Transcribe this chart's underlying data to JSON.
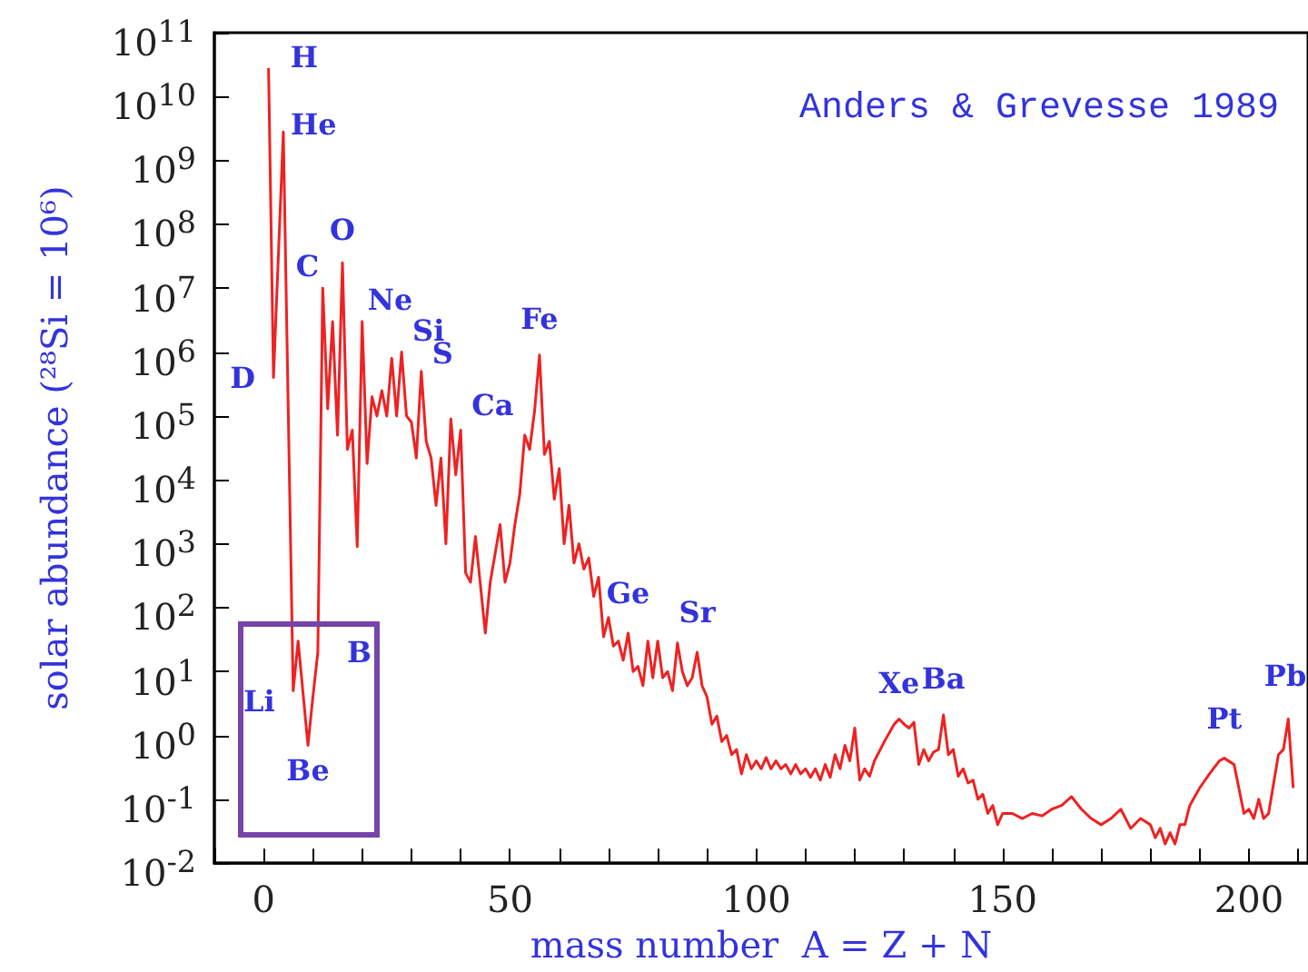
{
  "chart_data": {
    "type": "line",
    "xlabel": "mass number  A = Z + N",
    "ylabel": "solar abundance (²⁸Si = 10⁶)",
    "log": "y",
    "grid": false,
    "marker": "none",
    "line_style": "solid",
    "xlim": [
      -10,
      212
    ],
    "xticks": [
      {
        "value": -10,
        "label": null
      },
      0,
      {
        "value": 10,
        "label": null
      },
      {
        "value": 20,
        "label": null
      },
      {
        "value": 30,
        "label": null
      },
      {
        "value": 40,
        "label": null
      },
      50,
      {
        "value": 60,
        "label": null
      },
      {
        "value": 70,
        "label": null
      },
      {
        "value": 80,
        "label": null
      },
      {
        "value": 90,
        "label": null
      },
      100,
      {
        "value": 110,
        "label": null
      },
      {
        "value": 120,
        "label": null
      },
      {
        "value": 130,
        "label": null
      },
      {
        "value": 140,
        "label": null
      },
      150,
      {
        "value": 160,
        "label": null
      },
      {
        "value": 170,
        "label": null
      },
      {
        "value": 180,
        "label": null
      },
      {
        "value": 190,
        "label": null
      },
      200,
      {
        "value": 210,
        "label": null
      }
    ],
    "ylim": [
      0.01,
      100000000000
    ],
    "yticks": [
      {
        "value": 0.01,
        "label": "10$^{-2}$"
      },
      {
        "value": 0.1,
        "label": "10$^{-1}$"
      },
      {
        "value": 1,
        "label": "10$^{0}$"
      },
      {
        "value": 10,
        "label": "10$^{1}$"
      },
      {
        "value": 100,
        "label": "10$^{2}$"
      },
      {
        "value": 1000,
        "label": "10$^{3}$"
      },
      {
        "value": 10000,
        "label": "10$^{4}$"
      },
      {
        "value": 100000,
        "label": "10$^{5}$"
      },
      {
        "value": 1000000,
        "label": "10$^{6}$"
      },
      {
        "value": 10000000,
        "label": "10$^{7}$"
      },
      {
        "value": 100000000,
        "label": "10$^{8}$"
      },
      {
        "value": 1000000000,
        "label": "10$^{9}$"
      },
      {
        "value": 10000000000,
        "label": "10$^{10}$"
      },
      {
        "value": 100000000000,
        "label": "10$^{11}$"
      }
    ],
    "series": [
      {
        "color": "#ee2222",
        "x": [
          1,
          2,
          4,
          6,
          7,
          9,
          10,
          11,
          12,
          13,
          14,
          15,
          16,
          17,
          18,
          19,
          20,
          21,
          22,
          23,
          24,
          25,
          26,
          27,
          28,
          29,
          30,
          31,
          32,
          33,
          34,
          35,
          36,
          37,
          38,
          39,
          40,
          41,
          42,
          43,
          45,
          46,
          48,
          49,
          50,
          51,
          52,
          53,
          54,
          55,
          56,
          57,
          58,
          59,
          60,
          61,
          62,
          63,
          64,
          65,
          66,
          67,
          68,
          69,
          70,
          71,
          72,
          73,
          74,
          75,
          76,
          77,
          78,
          79,
          80,
          81,
          82,
          83,
          84,
          85,
          86,
          87,
          88,
          89,
          90,
          91,
          92,
          93,
          94,
          95,
          96,
          97,
          98,
          99,
          100,
          101,
          102,
          103,
          104,
          105,
          106,
          107,
          108,
          109,
          110,
          111,
          112,
          113,
          114,
          115,
          116,
          117,
          118,
          119,
          120,
          121,
          122,
          123,
          124,
          126,
          128,
          129,
          130,
          131,
          132,
          133,
          134,
          135,
          136,
          137,
          138,
          139,
          140,
          141,
          142,
          143,
          144,
          145,
          146,
          147,
          148,
          149,
          150,
          152,
          154,
          156,
          158,
          160,
          162,
          164,
          166,
          168,
          170,
          172,
          174,
          176,
          178,
          180,
          181,
          182,
          183,
          184,
          185,
          186,
          187,
          188,
          190,
          192,
          194,
          195,
          197,
          199,
          200,
          201,
          202,
          203,
          204,
          206,
          207,
          208,
          209
        ],
        "values": [
          28000000000,
          400000,
          2800000000,
          5,
          30,
          0.7,
          4,
          20,
          10000000,
          130000,
          3000000,
          50000,
          25000000,
          30000,
          60000,
          900,
          3000000,
          18000,
          200000,
          100000,
          250000,
          100000,
          800000,
          100000,
          1000000,
          100000,
          80000,
          22000,
          500000,
          40000,
          22000,
          4000,
          22000,
          1000,
          90000,
          12000,
          60000,
          350,
          250,
          1300,
          40,
          250,
          2000,
          250,
          500,
          2000,
          6000,
          50000,
          30000,
          120000,
          900000,
          25000,
          40000,
          5000,
          15000,
          1000,
          4000,
          500,
          1000,
          400,
          600,
          150,
          300,
          35,
          70,
          25,
          30,
          15,
          40,
          10,
          12,
          6,
          30,
          8,
          30,
          8,
          10,
          5,
          28,
          10,
          6,
          8,
          20,
          6,
          4,
          1.5,
          2,
          0.8,
          1,
          0.5,
          0.6,
          0.25,
          0.5,
          0.3,
          0.4,
          0.3,
          0.45,
          0.3,
          0.4,
          0.3,
          0.35,
          0.25,
          0.35,
          0.25,
          0.3,
          0.22,
          0.3,
          0.2,
          0.35,
          0.22,
          0.5,
          0.3,
          0.7,
          0.4,
          1.3,
          0.2,
          0.3,
          0.23,
          0.4,
          0.8,
          1.5,
          1.8,
          1.5,
          1.3,
          1.6,
          0.35,
          0.6,
          0.4,
          0.55,
          0.6,
          2.1,
          0.5,
          0.6,
          0.23,
          0.3,
          0.18,
          0.2,
          0.1,
          0.12,
          0.06,
          0.08,
          0.04,
          0.06,
          0.06,
          0.05,
          0.06,
          0.055,
          0.07,
          0.08,
          0.11,
          0.07,
          0.05,
          0.04,
          0.05,
          0.07,
          0.035,
          0.05,
          0.04,
          0.025,
          0.035,
          0.02,
          0.03,
          0.02,
          0.04,
          0.04,
          0.08,
          0.15,
          0.25,
          0.4,
          0.44,
          0.35,
          0.06,
          0.07,
          0.05,
          0.1,
          0.05,
          0.06,
          0.5,
          0.6,
          1.8,
          0.15
        ]
      }
    ],
    "annotations": [
      "Anders & Grevesse 1989",
      {
        "text": "H",
        "x": 1,
        "y": 28000000000
      },
      {
        "text": "He",
        "x": 4,
        "y": 2800000000
      },
      {
        "text": "D",
        "x": 2,
        "y": 400000
      },
      {
        "text": "Li",
        "x": 6,
        "y": 5
      },
      {
        "text": "Be",
        "x": 9,
        "y": 0.7
      },
      {
        "text": "B",
        "x": 11,
        "y": 20
      },
      {
        "text": "C",
        "x": 12,
        "y": 10000000
      },
      {
        "text": "O",
        "x": 16,
        "y": 25000000
      },
      {
        "text": "Ne",
        "x": 20,
        "y": 3000000
      },
      {
        "text": "Si",
        "x": 28,
        "y": 1000000
      },
      {
        "text": "S",
        "x": 32,
        "y": 500000
      },
      {
        "text": "Ca",
        "x": 40,
        "y": 60000
      },
      {
        "text": "Fe",
        "x": 56,
        "y": 900000
      },
      {
        "text": "Ge",
        "x": 74,
        "y": 40
      },
      {
        "text": "Sr",
        "x": 88,
        "y": 20
      },
      {
        "text": "Xe",
        "x": 129,
        "y": 1.8
      },
      {
        "text": "Ba",
        "x": 138,
        "y": 2.1
      },
      {
        "text": "Pt",
        "x": 195,
        "y": 0.44
      },
      {
        "text": "Pb",
        "x": 208,
        "y": 1.8
      }
    ]
  }
}
